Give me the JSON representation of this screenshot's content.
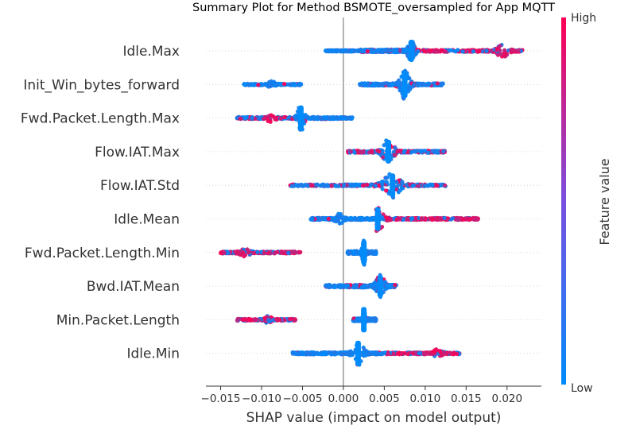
{
  "chart_data": {
    "type": "scatter",
    "title": "Summary Plot for Method BSMOTE_oversampled for App MQTT",
    "xlabel": "SHAP value (impact on model output)",
    "xlim": [
      -0.0168,
      0.0242
    ],
    "xticks": [
      -0.015,
      -0.01,
      -0.005,
      0.0,
      0.005,
      0.01,
      0.015,
      0.02
    ],
    "xtick_labels": [
      "−0.015",
      "−0.010",
      "−0.005",
      "0.000",
      "0.005",
      "0.010",
      "0.015",
      "0.020"
    ],
    "colorbar": {
      "title": "Feature value",
      "high_label": "High",
      "low_label": "Low",
      "low_color": "#008bfb",
      "high_color": "#ff0052"
    },
    "zero_line_color": "#999999",
    "features": [
      {
        "name": "Idle.Max",
        "segments": [
          {
            "x0": -0.0022,
            "x1": 0.0022,
            "n": 130,
            "d": 0.35,
            "hot": 0.02
          },
          {
            "x0": 0.002,
            "x1": 0.009,
            "n": 260,
            "d": 0.75,
            "hot": 0.15,
            "peak": 0.0083,
            "peakH": 14
          },
          {
            "x0": 0.009,
            "x1": 0.022,
            "n": 220,
            "d": 0.55,
            "hot": 0.82,
            "peak": 0.0195,
            "peakH": 7
          }
        ]
      },
      {
        "name": "Init_Win_bytes_forward",
        "segments": [
          {
            "x0": -0.0122,
            "x1": -0.005,
            "n": 150,
            "d": 0.4,
            "hot": 0.05,
            "peak": -0.0088,
            "peakH": 4
          },
          {
            "x0": 0.002,
            "x1": 0.0122,
            "n": 260,
            "d": 0.65,
            "hot": 0.05,
            "peak": 0.0075,
            "peakH": 17
          }
        ]
      },
      {
        "name": "Fwd.Packet.Length.Max",
        "segments": [
          {
            "x0": -0.013,
            "x1": -0.0055,
            "n": 160,
            "d": 0.55,
            "hot": 0.6,
            "peak": -0.0088,
            "peakH": 6
          },
          {
            "x0": -0.006,
            "x1": 0.0012,
            "n": 170,
            "d": 0.55,
            "hot": 0.05,
            "peak": -0.0052,
            "peakH": 16
          }
        ]
      },
      {
        "name": "Flow.IAT.Max",
        "segments": [
          {
            "x0": 0.0005,
            "x1": 0.0125,
            "n": 280,
            "d": 0.55,
            "hot": 0.45,
            "peak": 0.0055,
            "peakH": 15
          }
        ]
      },
      {
        "name": "Flow.IAT.Std",
        "segments": [
          {
            "x0": -0.0065,
            "x1": 0.0125,
            "n": 300,
            "d": 0.5,
            "hot": 0.3,
            "peak": 0.006,
            "peakH": 15
          }
        ]
      },
      {
        "name": "Idle.Mean",
        "segments": [
          {
            "x0": -0.004,
            "x1": 0.0045,
            "n": 200,
            "d": 0.55,
            "hot": 0.03,
            "peak": -0.0005,
            "peakH": 6
          },
          {
            "x0": 0.004,
            "x1": 0.0165,
            "n": 240,
            "d": 0.5,
            "hot": 0.8,
            "peak": 0.0042,
            "peakH": 15
          }
        ]
      },
      {
        "name": "Fwd.Packet.Length.Min",
        "segments": [
          {
            "x0": -0.015,
            "x1": -0.0052,
            "n": 200,
            "d": 0.55,
            "hot": 0.72,
            "peak": -0.012,
            "peakH": 4
          },
          {
            "x0": 0.0005,
            "x1": 0.004,
            "n": 150,
            "d": 0.8,
            "hot": 0.02,
            "peak": 0.0025,
            "peakH": 15
          }
        ]
      },
      {
        "name": "Bwd.IAT.Mean",
        "segments": [
          {
            "x0": -0.0022,
            "x1": 0.0065,
            "n": 260,
            "d": 0.75,
            "hot": 0.2,
            "peak": 0.0045,
            "peakH": 14
          }
        ]
      },
      {
        "name": "Min.Packet.Length",
        "segments": [
          {
            "x0": -0.013,
            "x1": -0.0058,
            "n": 140,
            "d": 0.5,
            "hot": 0.7,
            "peak": -0.0092,
            "peakH": 4
          },
          {
            "x0": 0.0012,
            "x1": 0.004,
            "n": 130,
            "d": 0.8,
            "hot": 0.02,
            "peak": 0.0025,
            "peakH": 16
          }
        ]
      },
      {
        "name": "Idle.Min",
        "segments": [
          {
            "x0": -0.0062,
            "x1": 0.005,
            "n": 260,
            "d": 0.55,
            "hot": 0.02,
            "peak": 0.0018,
            "peakH": 16
          },
          {
            "x0": 0.005,
            "x1": 0.0142,
            "n": 220,
            "d": 0.5,
            "hot": 0.75,
            "peak": 0.0115,
            "peakH": 5
          }
        ]
      }
    ]
  }
}
